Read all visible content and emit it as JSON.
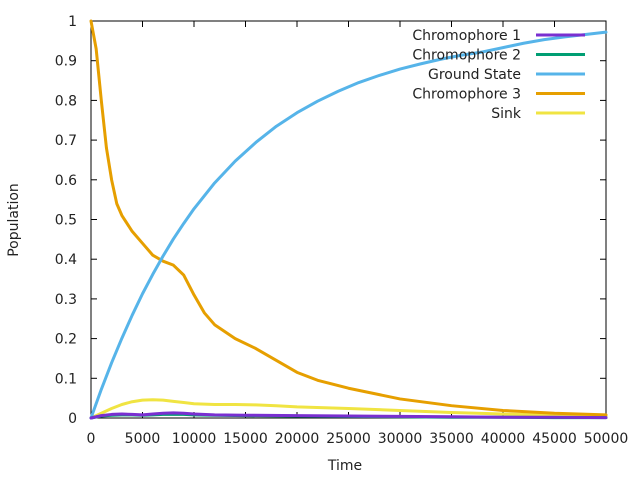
{
  "chart_data": {
    "type": "line",
    "title": "",
    "xlabel": "Time",
    "ylabel": "Population",
    "xlim": [
      0,
      50000
    ],
    "ylim": [
      0,
      1
    ],
    "grid": false,
    "legend_position": "top-right",
    "x_ticks": [
      0,
      5000,
      10000,
      15000,
      20000,
      25000,
      30000,
      35000,
      40000,
      45000,
      50000
    ],
    "y_ticks": [
      0,
      0.1,
      0.2,
      0.3,
      0.4,
      0.5,
      0.6,
      0.7,
      0.8,
      0.9,
      1
    ],
    "x_tick_labels": [
      "0",
      "5000",
      "10000",
      "15000",
      "20000",
      "25000",
      "30000",
      "35000",
      "40000",
      "45000",
      "50000"
    ],
    "y_tick_labels": [
      "0",
      "0.1",
      "0.2",
      "0.3",
      "0.4",
      "0.5",
      "0.6",
      "0.7",
      "0.8",
      "0.9",
      "1"
    ],
    "series": [
      {
        "name": "Chromophore 1",
        "color": "#7a2fd0",
        "x": [
          0,
          1000,
          2000,
          3000,
          4000,
          5000,
          6000,
          7000,
          8000,
          9000,
          10000,
          12000,
          15000,
          20000,
          25000,
          30000,
          35000,
          40000,
          45000,
          50000
        ],
        "y": [
          0,
          0.006,
          0.009,
          0.01,
          0.009,
          0.008,
          0.01,
          0.012,
          0.013,
          0.012,
          0.01,
          0.008,
          0.007,
          0.006,
          0.005,
          0.004,
          0.003,
          0.002,
          0.002,
          0.001
        ]
      },
      {
        "name": "Chromophore 2",
        "color": "#009e73",
        "x": [
          0,
          1000,
          2000,
          3000,
          4000,
          5000,
          6000,
          7000,
          8000,
          9000,
          10000,
          12000,
          15000,
          20000,
          25000,
          30000,
          35000,
          40000,
          45000,
          50000
        ],
        "y": [
          0,
          0.005,
          0.007,
          0.008,
          0.008,
          0.007,
          0.008,
          0.009,
          0.009,
          0.009,
          0.008,
          0.007,
          0.006,
          0.005,
          0.004,
          0.003,
          0.002,
          0.002,
          0.001,
          0.001
        ]
      },
      {
        "name": "Ground State",
        "color": "#56b4e9",
        "x": [
          0,
          1000,
          2000,
          3000,
          4000,
          5000,
          6000,
          7000,
          8000,
          9000,
          10000,
          12000,
          14000,
          16000,
          18000,
          20000,
          22000,
          24000,
          26000,
          28000,
          30000,
          32000,
          34000,
          36000,
          38000,
          40000,
          42000,
          44000,
          46000,
          48000,
          50000
        ],
        "y": [
          0,
          0.072,
          0.139,
          0.201,
          0.259,
          0.313,
          0.362,
          0.408,
          0.451,
          0.49,
          0.527,
          0.592,
          0.647,
          0.694,
          0.735,
          0.769,
          0.798,
          0.823,
          0.845,
          0.863,
          0.879,
          0.892,
          0.904,
          0.914,
          0.922,
          0.933,
          0.944,
          0.953,
          0.96,
          0.966,
          0.972
        ]
      },
      {
        "name": "Chromophore 3",
        "color": "#e69f00",
        "x": [
          0,
          500,
          1000,
          1500,
          2000,
          2500,
          3000,
          4000,
          5000,
          6000,
          7000,
          8000,
          9000,
          10000,
          11000,
          12000,
          14000,
          16000,
          18000,
          20000,
          22000,
          25000,
          30000,
          35000,
          40000,
          45000,
          50000
        ],
        "y": [
          1.0,
          0.93,
          0.8,
          0.68,
          0.6,
          0.54,
          0.51,
          0.47,
          0.44,
          0.41,
          0.395,
          0.385,
          0.36,
          0.31,
          0.265,
          0.235,
          0.2,
          0.175,
          0.145,
          0.115,
          0.095,
          0.075,
          0.048,
          0.031,
          0.019,
          0.012,
          0.008
        ]
      },
      {
        "name": "Sink",
        "color": "#f0e442",
        "x": [
          0,
          1000,
          2000,
          3000,
          4000,
          5000,
          6000,
          7000,
          8000,
          9000,
          10000,
          12000,
          14000,
          16000,
          18000,
          20000,
          25000,
          30000,
          35000,
          40000,
          45000,
          50000
        ],
        "y": [
          0,
          0.012,
          0.024,
          0.034,
          0.041,
          0.045,
          0.046,
          0.045,
          0.042,
          0.039,
          0.036,
          0.034,
          0.034,
          0.033,
          0.031,
          0.028,
          0.024,
          0.019,
          0.014,
          0.01,
          0.007,
          0.005
        ]
      }
    ]
  }
}
